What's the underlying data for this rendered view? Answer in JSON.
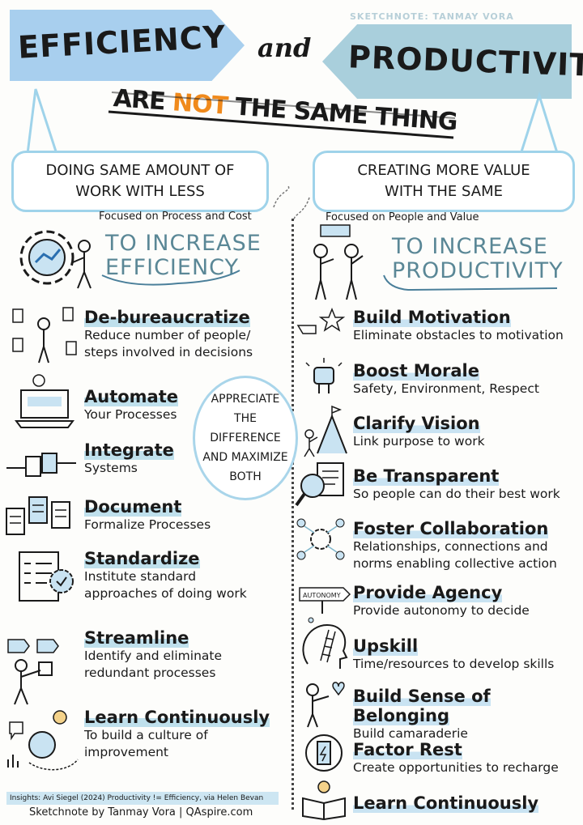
{
  "signature": "SKETCHNOTE: TANMAY VORA",
  "header": {
    "left_banner": "EFFICIENCY",
    "connector": "and",
    "right_banner": "PRODUCTIVITY",
    "tagline_are": "ARE",
    "tagline_not": "NOT",
    "tagline_rest": "THE SAME THING"
  },
  "definitions": {
    "efficiency": "DOING SAME AMOUNT OF WORK WITH LESS",
    "efficiency_focus": "Focused on Process and Cost",
    "productivity": "CREATING MORE VALUE WITH THE SAME",
    "productivity_focus": "Focused on People and Value"
  },
  "efficiency_heading": {
    "line1": "TO INCREASE",
    "line2": "EFFICIENCY"
  },
  "productivity_heading": {
    "line1": "TO INCREASE",
    "line2": "PRODUCTIVITY"
  },
  "efficiency_items": [
    {
      "title": "De-bureaucratize",
      "line1": "Reduce number of people/",
      "line2": "steps involved in decisions"
    },
    {
      "title": "Automate",
      "line1": "Your Processes",
      "line2": ""
    },
    {
      "title": "Integrate",
      "line1": "Systems",
      "line2": ""
    },
    {
      "title": "Document",
      "line1": "Formalize Processes",
      "line2": ""
    },
    {
      "title": "Standardize",
      "line1": "Institute standard",
      "line2": "approaches of doing work"
    },
    {
      "title": "Streamline",
      "line1": "Identify and eliminate",
      "line2": "redundant processes"
    },
    {
      "title": "Learn Continuously",
      "line1": "To build a culture of",
      "line2": "improvement"
    }
  ],
  "cloud": {
    "l1": "APPRECIATE",
    "l2": "THE",
    "l3": "DIFFERENCE",
    "l4": "AND MAXIMIZE",
    "l5": "BOTH"
  },
  "productivity_items": [
    {
      "title": "Build Motivation",
      "line1": "Eliminate obstacles to motivation",
      "line2": ""
    },
    {
      "title": "Boost Morale",
      "line1": "Safety, Environment, Respect",
      "line2": ""
    },
    {
      "title": "Clarify Vision",
      "line1": "Link purpose to work",
      "line2": ""
    },
    {
      "title": "Be Transparent",
      "line1": "So people can do their best work",
      "line2": ""
    },
    {
      "title": "Foster Collaboration",
      "line1": "Relationships, connections and",
      "line2": "norms enabling collective action"
    },
    {
      "title": "Provide Agency",
      "line1": "Provide autonomy to decide",
      "line2": ""
    },
    {
      "title": "Upskill",
      "line1": "Time/resources to develop skills",
      "line2": ""
    },
    {
      "title": "Build Sense of Belonging",
      "line1": "Build camaraderie",
      "line2": ""
    },
    {
      "title": "Factor Rest",
      "line1": "Create opportunities to recharge",
      "line2": ""
    },
    {
      "title": "Learn Continuously",
      "line1": "",
      "line2": ""
    }
  ],
  "autonomy_sign": "AUTONOMY",
  "footer": {
    "insights": "Insights: Avi Siegel (2024) Productivity != Efficiency, via Helen Bevan",
    "credit": "Sketchnote by Tanmay Vora | QAspire.com"
  },
  "colors": {
    "blue_left": "#a8cfee",
    "blue_right": "#a9cfdc",
    "accent_orange": "#f08a1c",
    "highlight": "#bfe0ec"
  }
}
